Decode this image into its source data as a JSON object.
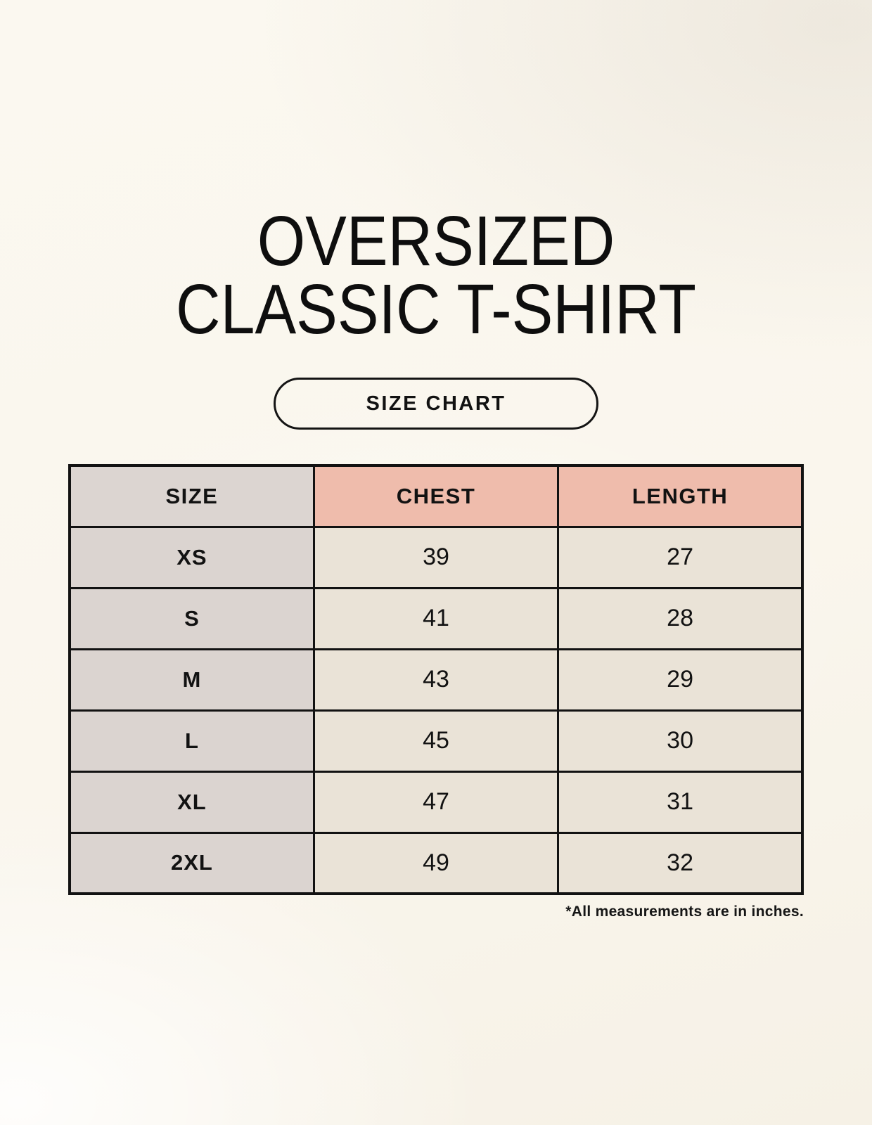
{
  "title": {
    "line1": "OVERSIZED",
    "line2": "CLASSIC T-SHIRT"
  },
  "size_chart_button": {
    "label": "SIZE CHART"
  },
  "footnote": "*All measurements are in inches.",
  "colors": {
    "background_cream": "#faf6ed",
    "header_pink": "#efbcac",
    "column_gray": "#dbd4d0",
    "cell_beige": "#eae3d7",
    "border_black": "#121212"
  },
  "chart_data": {
    "type": "table",
    "title": "OVERSIZED CLASSIC T-SHIRT SIZE CHART",
    "units": "inches",
    "columns": [
      "SIZE",
      "CHEST",
      "LENGTH"
    ],
    "rows": [
      {
        "size": "XS",
        "chest": "39",
        "length": "27"
      },
      {
        "size": "S",
        "chest": "41",
        "length": "28"
      },
      {
        "size": "M",
        "chest": "43",
        "length": "29"
      },
      {
        "size": "L",
        "chest": "45",
        "length": "30"
      },
      {
        "size": "XL",
        "chest": "47",
        "length": "31"
      },
      {
        "size": "2XL",
        "chest": "49",
        "length": "32"
      }
    ]
  }
}
